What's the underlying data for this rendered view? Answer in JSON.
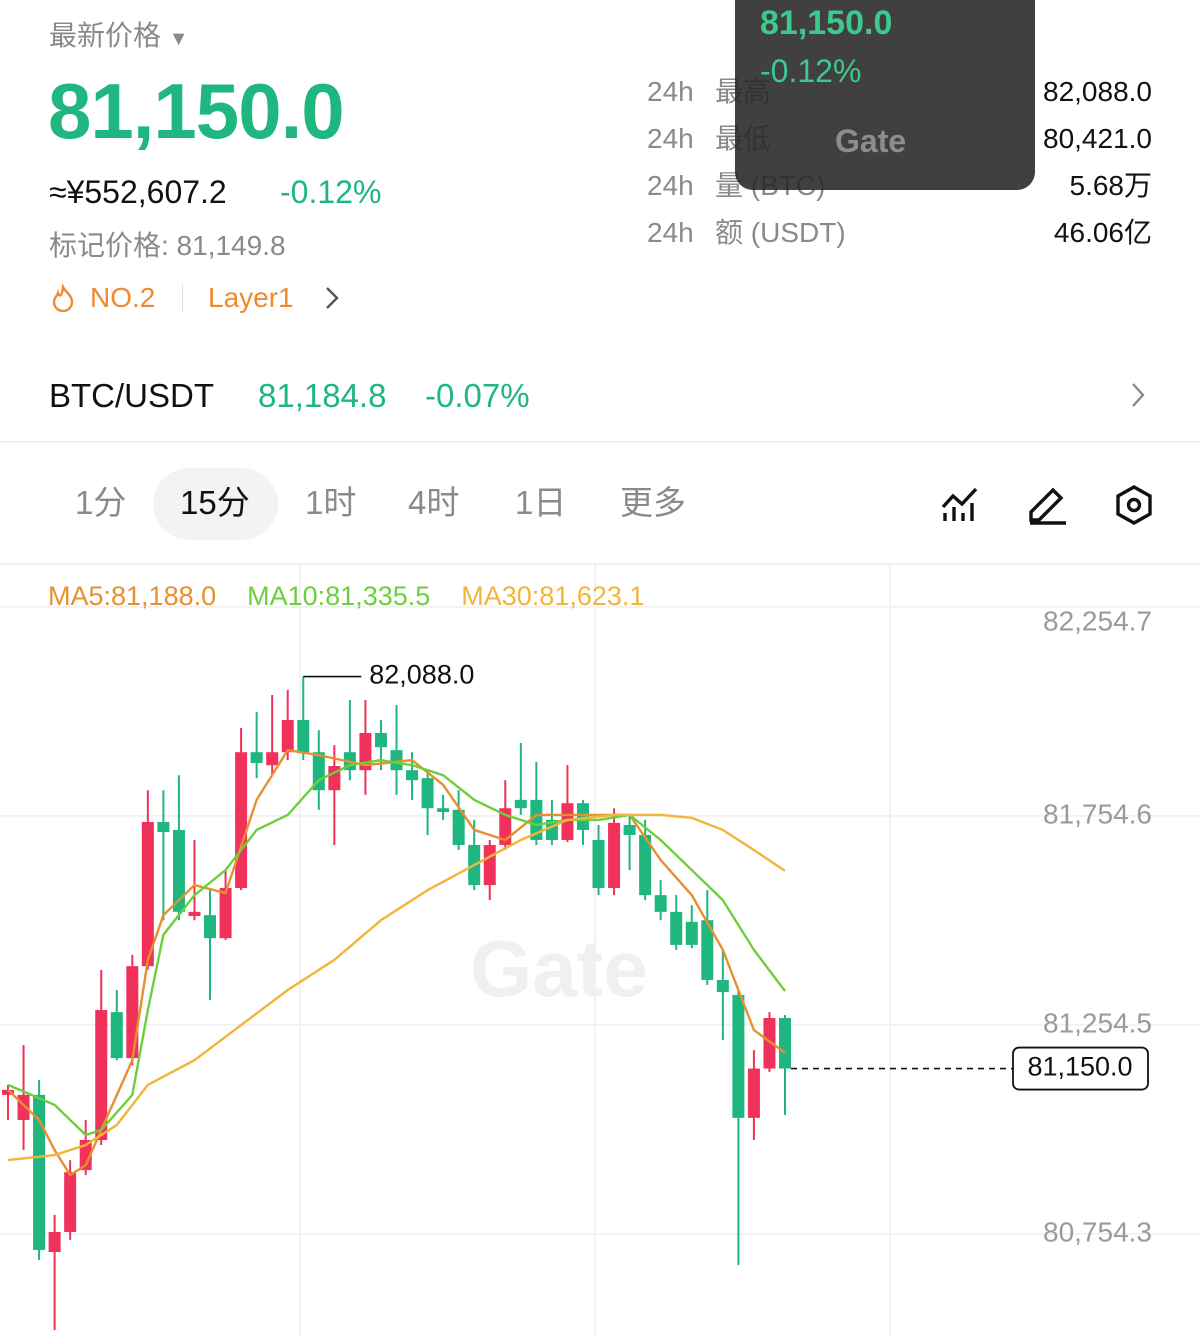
{
  "header": {
    "price_label": "最新价格",
    "price": "81,150.0",
    "cny_price": "≈¥552,607.2",
    "change": "-0.12%",
    "mark_price": "标记价格: 81,149.8",
    "rank": "NO.2",
    "tag": "Layer1"
  },
  "stats": {
    "rows": [
      [
        "24h",
        "最高",
        "82,088.0"
      ],
      [
        "24h",
        "最低",
        "80,421.0"
      ],
      [
        "24h",
        "量 (BTC)",
        "5.68万"
      ],
      [
        "24h",
        "额 (USDT)",
        "46.06亿"
      ]
    ]
  },
  "overlay": {
    "price": "81,150.0",
    "change": "-0.12%",
    "logo": "Gate"
  },
  "pair": {
    "symbol": "BTC/USDT",
    "price": "81,184.8",
    "change": "-0.07%"
  },
  "tabs": {
    "items": [
      "1分",
      "15分",
      "1时",
      "4时",
      "1日",
      "更多"
    ],
    "active": 1
  },
  "chart_data": {
    "type": "candlestick",
    "watermark": "Gate",
    "up_color": "#f0315a",
    "down_color": "#1fb77f",
    "grid": true,
    "ylim": [
      80510,
      82355
    ],
    "yticks": [
      {
        "value": 82254.7,
        "label": "82,254.7"
      },
      {
        "value": 81754.6,
        "label": "81,754.6"
      },
      {
        "value": 81254.5,
        "label": "81,254.5"
      },
      {
        "value": 80754.3,
        "label": "80,754.3"
      }
    ],
    "open": [
      81087,
      81027,
      81087,
      80711,
      80759,
      80907,
      80979,
      81285,
      81175,
      81395,
      81740,
      81721,
      81515,
      81517,
      81462,
      81582,
      81907,
      81876,
      81907,
      81984,
      81907,
      81816,
      81907,
      81864,
      81953,
      81912,
      81864,
      81845,
      81773,
      81769,
      81685,
      81589,
      81685,
      81793,
      81793,
      81745,
      81697,
      81785,
      81697,
      81582,
      81733,
      81709,
      81565,
      81525,
      81501,
      81505,
      81362,
      81326,
      81032,
      81150,
      81271
    ],
    "high": [
      81111,
      81206,
      81123,
      80800,
      80931,
      81027,
      81386,
      81338,
      81422,
      81816,
      81816,
      81852,
      81697,
      81577,
      81625,
      81965,
      82003,
      82044,
      82056,
      82088,
      81960,
      81924,
      82032,
      82032,
      81984,
      82020,
      81907,
      81864,
      81805,
      81816,
      81745,
      81697,
      81840,
      81929,
      81884,
      81793,
      81876,
      81793,
      81733,
      81773,
      81757,
      81745,
      81601,
      81565,
      81541,
      81577,
      81434,
      81338,
      81194,
      81285,
      81278
    ],
    "low": [
      81027,
      80955,
      80692,
      80524,
      80740,
      80895,
      80967,
      81170,
      81158,
      81386,
      81505,
      81505,
      81505,
      81314,
      81458,
      81577,
      81845,
      81852,
      81888,
      81888,
      81769,
      81685,
      81840,
      81805,
      81864,
      81805,
      81793,
      81709,
      81745,
      81673,
      81577,
      81553,
      81673,
      81757,
      81685,
      81685,
      81692,
      81685,
      81565,
      81565,
      81625,
      81553,
      81505,
      81434,
      81438,
      81350,
      81218,
      80680,
      80979,
      81142,
      81039
    ],
    "close": [
      81099,
      81087,
      80716,
      80759,
      80902,
      80979,
      81290,
      81175,
      81395,
      81740,
      81716,
      81525,
      81525,
      81462,
      81582,
      81907,
      81881,
      81907,
      81984,
      81907,
      81816,
      81874,
      81864,
      81953,
      81919,
      81864,
      81840,
      81773,
      81764,
      81685,
      81589,
      81685,
      81773,
      81773,
      81697,
      81697,
      81785,
      81721,
      81582,
      81738,
      81709,
      81565,
      81525,
      81446,
      81446,
      81362,
      81333,
      81032,
      81150,
      81271,
      81150
    ],
    "series": [
      {
        "name": "MA5:81,188.0",
        "color": "#e8902e",
        "x": [
          0,
          2,
          3,
          4,
          5,
          6,
          8,
          9,
          10,
          12,
          14,
          16,
          18,
          20,
          23,
          26,
          28,
          30,
          32,
          34,
          37,
          40,
          42,
          44,
          46,
          48,
          50
        ],
        "values": [
          81099,
          81027,
          80955,
          80895,
          80919,
          81003,
          81170,
          81410,
          81517,
          81589,
          81570,
          81793,
          81912,
          81900,
          81876,
          81888,
          81829,
          81721,
          81697,
          81757,
          81757,
          81757,
          81649,
          81565,
          81434,
          81242,
          81188
        ]
      },
      {
        "name": "MA10:81,335.5",
        "color": "#6ccf3c",
        "x": [
          0,
          3,
          5,
          6,
          8,
          9,
          10,
          12,
          14,
          16,
          18,
          20,
          22,
          24,
          26,
          28,
          30,
          32,
          34,
          36,
          38,
          40,
          42,
          44,
          46,
          48,
          50
        ],
        "values": [
          81111,
          81063,
          80991,
          81003,
          81087,
          81290,
          81470,
          81565,
          81625,
          81721,
          81757,
          81840,
          81876,
          81888,
          81876,
          81852,
          81793,
          81757,
          81733,
          81745,
          81745,
          81757,
          81697,
          81625,
          81553,
          81434,
          81335.5
        ]
      },
      {
        "name": "MA30:81,623.1",
        "color": "#f2b43a",
        "x": [
          0,
          3,
          5,
          7,
          9,
          12,
          15,
          18,
          21,
          24,
          27,
          30,
          33,
          36,
          39,
          42,
          44,
          46,
          48,
          50
        ],
        "values": [
          80931,
          80943,
          80967,
          81015,
          81111,
          81170,
          81254,
          81338,
          81410,
          81505,
          81577,
          81637,
          81697,
          81745,
          81757,
          81757,
          81750,
          81721,
          81673,
          81623.1
        ]
      }
    ],
    "high_label": {
      "value": 82088,
      "label": "82,088.0"
    },
    "last_price": {
      "value": 81150,
      "label": "81,150.0"
    }
  }
}
